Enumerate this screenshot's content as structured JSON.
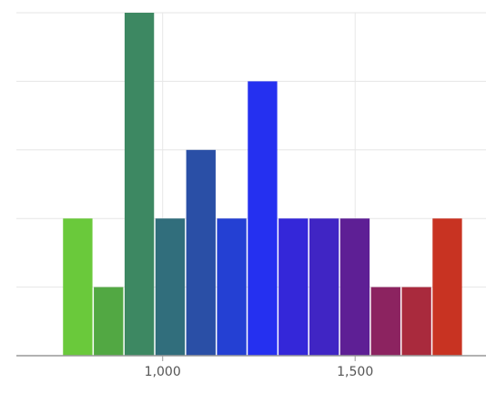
{
  "chart_data": {
    "type": "bar",
    "title": "",
    "xlabel": "",
    "ylabel": "",
    "x_ticks": [
      {
        "value": 1000,
        "label": "1,000"
      },
      {
        "value": 1500,
        "label": "1,500"
      }
    ],
    "y_grid_values": [
      1,
      2,
      3,
      4,
      5
    ],
    "xlim": [
      620,
      1840
    ],
    "ylim": [
      0,
      5
    ],
    "grid": true,
    "bins": [
      {
        "x0": 740,
        "x1": 820,
        "value": 2,
        "color": "#6ac93b"
      },
      {
        "x0": 820,
        "x1": 900,
        "value": 1,
        "color": "#52a843"
      },
      {
        "x0": 900,
        "x1": 980,
        "value": 5,
        "color": "#3d8862"
      },
      {
        "x0": 980,
        "x1": 1060,
        "value": 2,
        "color": "#316e7c"
      },
      {
        "x0": 1060,
        "x1": 1140,
        "value": 3,
        "color": "#2a4fa6"
      },
      {
        "x0": 1140,
        "x1": 1220,
        "value": 2,
        "color": "#2440d3"
      },
      {
        "x0": 1220,
        "x1": 1300,
        "value": 4,
        "color": "#2530f0"
      },
      {
        "x0": 1300,
        "x1": 1380,
        "value": 2,
        "color": "#3427d9"
      },
      {
        "x0": 1380,
        "x1": 1460,
        "value": 2,
        "color": "#4025c4"
      },
      {
        "x0": 1460,
        "x1": 1540,
        "value": 2,
        "color": "#5e1f95"
      },
      {
        "x0": 1540,
        "x1": 1620,
        "value": 1,
        "color": "#8c2360"
      },
      {
        "x0": 1620,
        "x1": 1700,
        "value": 1,
        "color": "#a92a3d"
      },
      {
        "x0": 1700,
        "x1": 1780,
        "value": 2,
        "color": "#c83322"
      }
    ]
  }
}
